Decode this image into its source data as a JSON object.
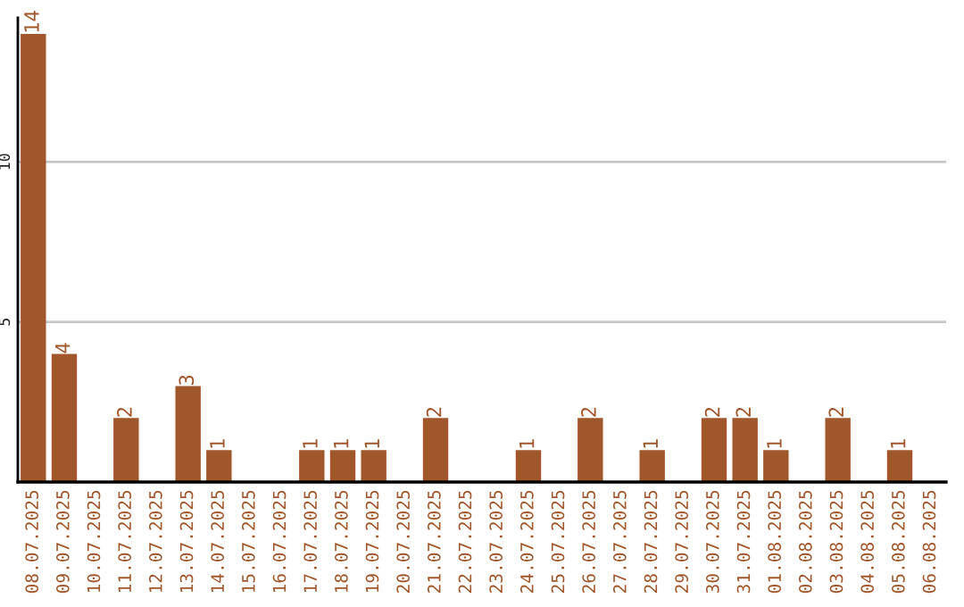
{
  "chart_data": {
    "type": "bar",
    "categories": [
      "08.07.2025",
      "09.07.2025",
      "10.07.2025",
      "11.07.2025",
      "12.07.2025",
      "13.07.2025",
      "14.07.2025",
      "15.07.2025",
      "16.07.2025",
      "17.07.2025",
      "18.07.2025",
      "19.07.2025",
      "20.07.2025",
      "21.07.2025",
      "22.07.2025",
      "23.07.2025",
      "24.07.2025",
      "25.07.2025",
      "26.07.2025",
      "27.07.2025",
      "28.07.2025",
      "29.07.2025",
      "30.07.2025",
      "31.07.2025",
      "01.08.2025",
      "02.08.2025",
      "03.08.2025",
      "04.08.2025",
      "05.08.2025",
      "06.08.2025"
    ],
    "values": [
      14,
      4,
      0,
      2,
      0,
      3,
      1,
      0,
      0,
      1,
      1,
      1,
      0,
      2,
      0,
      0,
      1,
      0,
      2,
      0,
      1,
      0,
      2,
      2,
      1,
      0,
      2,
      0,
      1,
      0
    ],
    "value_labels": [
      "14",
      "4",
      null,
      "2",
      null,
      "3",
      "1",
      null,
      null,
      "1",
      "1",
      "1",
      null,
      "2",
      null,
      null,
      "1",
      null,
      "2",
      null,
      "1",
      null,
      "2",
      "2",
      "1",
      null,
      "2",
      null,
      "1",
      null
    ],
    "color": "#a0572b",
    "ylim": [
      0,
      14.5
    ],
    "yticks": [
      5,
      10
    ],
    "grid": "y"
  }
}
